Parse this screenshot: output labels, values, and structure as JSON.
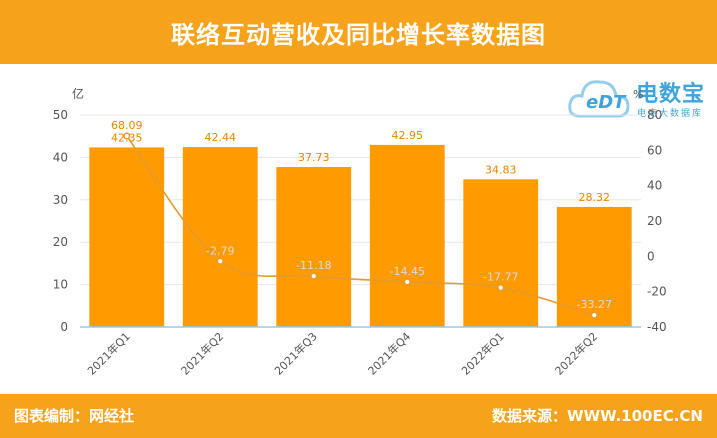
{
  "header": {
    "title": "联络互动营收及同比增长率数据图"
  },
  "footer": {
    "editor": "图表编制：网经社",
    "source": "数据来源：WWW.100EC.CN"
  },
  "logo": {
    "name": "电数宝",
    "sub": "电商大数据库",
    "mark": "eDT"
  },
  "colors": {
    "accent": "#f7a21b",
    "bar": "#ff9a00",
    "line": "#e59a2b",
    "logo": "#3fa4dc"
  },
  "chart_data": {
    "type": "bar",
    "categories": [
      "2021年Q1",
      "2021年Q2",
      "2021年Q3",
      "2021年Q4",
      "2022年Q1",
      "2022年Q2"
    ],
    "series": [
      {
        "values": [
          42.35,
          42.44,
          37.73,
          42.95,
          34.83,
          28.32
        ],
        "axis": "left",
        "type": "bar"
      },
      {
        "values": [
          68.09,
          -2.79,
          -11.18,
          -14.45,
          -17.77,
          -33.27
        ],
        "axis": "right",
        "type": "line"
      }
    ],
    "ylabel": "亿",
    "ylabel_right": "%",
    "ylim": [
      0,
      50
    ],
    "yticks": [
      0,
      10,
      20,
      30,
      40,
      50
    ],
    "ylim_right": [
      -40,
      80
    ],
    "yticks_right": [
      -40,
      -20,
      0,
      20,
      40,
      60,
      80
    ],
    "grid": true,
    "legend": "none"
  }
}
